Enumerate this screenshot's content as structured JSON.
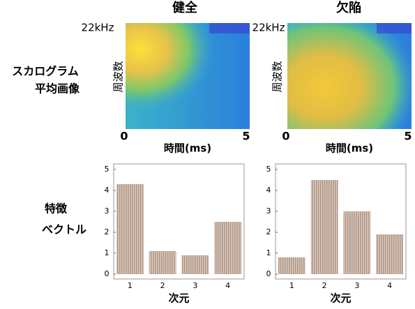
{
  "titles": [
    "健全",
    "欠陥"
  ],
  "row_labels": {
    "scalogram": [
      "スカログラム",
      "平均画像"
    ],
    "feature": [
      "特徴",
      "ベクトル"
    ]
  },
  "scalogram": {
    "freq_max": "22kHz",
    "freq_label": "周波数",
    "time_start": 0,
    "time_end": 5,
    "time_label": "時間(ms)"
  },
  "feature_plots": [
    {
      "levels": [
        4.3,
        1.1,
        0.9,
        2.5
      ]
    },
    {
      "levels": [
        0.8,
        4.5,
        3.0,
        1.9
      ]
    }
  ],
  "dims": [
    1,
    2,
    3,
    4
  ],
  "yticks": [
    0,
    1,
    2,
    3,
    4,
    5
  ],
  "ylim": [
    0,
    5
  ],
  "xlabel": "次元"
}
